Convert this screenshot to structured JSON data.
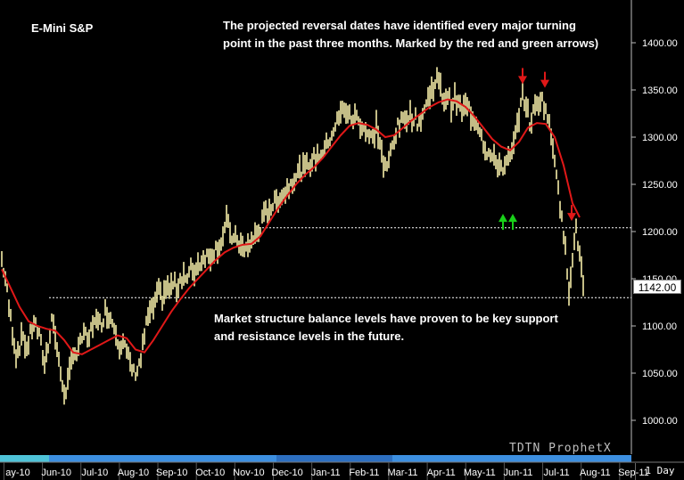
{
  "chart_data": {
    "type": "line",
    "title": "E-Mini S&P",
    "annotations": [
      "The projected reversal dates have identified every major turning point in the past three months. Marked by the red and green arrows)",
      "Market structure balance levels have proven to be key support and resistance levels in the future."
    ],
    "ylim": [
      980,
      1440
    ],
    "y_ticks": [
      1000,
      1050,
      1100,
      1150,
      1200,
      1250,
      1300,
      1350,
      1400
    ],
    "y_tick_labels": [
      "1000.00",
      "1050.00",
      "1100.00",
      "1150.00",
      "1200.00",
      "1250.00",
      "1300.00",
      "1350.00",
      "1400.00"
    ],
    "x_tick_labels": [
      "ay-10",
      "Jun-10",
      "Jul-10",
      "Aug-10",
      "Sep-10",
      "Oct-10",
      "Nov-10",
      "Dec-10",
      "Jan-11",
      "Feb-11",
      "Mar-11",
      "Apr-11",
      "May-11",
      "Jun-11",
      "Jul-11",
      "Aug-11",
      "Sep-11"
    ],
    "last_price_label": "1142.00",
    "timeframe": "1 Day",
    "watermark": "TDTN ProphetX",
    "balance_levels": [
      1204,
      1130
    ],
    "price_path": [
      [
        0,
        1170
      ],
      [
        4,
        1150
      ],
      [
        8,
        1120
      ],
      [
        12,
        1095
      ],
      [
        16,
        1070
      ],
      [
        20,
        1080
      ],
      [
        24,
        1090
      ],
      [
        28,
        1075
      ],
      [
        32,
        1090
      ],
      [
        36,
        1105
      ],
      [
        40,
        1095
      ],
      [
        44,
        1080
      ],
      [
        48,
        1060
      ],
      [
        52,
        1080
      ],
      [
        56,
        1110
      ],
      [
        60,
        1090
      ],
      [
        64,
        1060
      ],
      [
        68,
        1040
      ],
      [
        72,
        1025
      ],
      [
        76,
        1050
      ],
      [
        80,
        1075
      ],
      [
        84,
        1070
      ],
      [
        88,
        1080
      ],
      [
        92,
        1095
      ],
      [
        96,
        1080
      ],
      [
        100,
        1095
      ],
      [
        104,
        1110
      ],
      [
        108,
        1100
      ],
      [
        112,
        1105
      ],
      [
        116,
        1115
      ],
      [
        120,
        1112
      ],
      [
        124,
        1105
      ],
      [
        128,
        1095
      ],
      [
        132,
        1080
      ],
      [
        136,
        1085
      ],
      [
        140,
        1070
      ],
      [
        144,
        1060
      ],
      [
        148,
        1050
      ],
      [
        152,
        1055
      ],
      [
        156,
        1065
      ],
      [
        160,
        1090
      ],
      [
        164,
        1110
      ],
      [
        168,
        1115
      ],
      [
        172,
        1125
      ],
      [
        176,
        1135
      ],
      [
        180,
        1130
      ],
      [
        184,
        1140
      ],
      [
        188,
        1138
      ],
      [
        192,
        1145
      ],
      [
        196,
        1140
      ],
      [
        200,
        1150
      ],
      [
        204,
        1155
      ],
      [
        208,
        1148
      ],
      [
        212,
        1160
      ],
      [
        216,
        1158
      ],
      [
        220,
        1165
      ],
      [
        224,
        1170
      ],
      [
        228,
        1175
      ],
      [
        232,
        1173
      ],
      [
        236,
        1178
      ],
      [
        240,
        1182
      ],
      [
        244,
        1186
      ],
      [
        248,
        1195
      ],
      [
        252,
        1210
      ],
      [
        256,
        1200
      ],
      [
        260,
        1190
      ],
      [
        264,
        1192
      ],
      [
        268,
        1185
      ],
      [
        272,
        1178
      ],
      [
        276,
        1184
      ],
      [
        280,
        1190
      ],
      [
        284,
        1195
      ],
      [
        288,
        1200
      ],
      [
        292,
        1210
      ],
      [
        296,
        1220
      ],
      [
        300,
        1225
      ],
      [
        304,
        1228
      ],
      [
        308,
        1232
      ],
      [
        312,
        1238
      ],
      [
        316,
        1240
      ],
      [
        320,
        1245
      ],
      [
        324,
        1252
      ],
      [
        328,
        1258
      ],
      [
        332,
        1262
      ],
      [
        336,
        1265
      ],
      [
        340,
        1266
      ],
      [
        344,
        1272
      ],
      [
        348,
        1275
      ],
      [
        352,
        1278
      ],
      [
        356,
        1282
      ],
      [
        360,
        1286
      ],
      [
        364,
        1290
      ],
      [
        368,
        1300
      ],
      [
        372,
        1308
      ],
      [
        376,
        1316
      ],
      [
        380,
        1324
      ],
      [
        384,
        1332
      ],
      [
        388,
        1325
      ],
      [
        392,
        1318
      ],
      [
        396,
        1322
      ],
      [
        400,
        1318
      ],
      [
        404,
        1312
      ],
      [
        408,
        1308
      ],
      [
        412,
        1300
      ],
      [
        416,
        1298
      ],
      [
        420,
        1312
      ],
      [
        424,
        1295
      ],
      [
        428,
        1270
      ],
      [
        432,
        1265
      ],
      [
        436,
        1285
      ],
      [
        440,
        1300
      ],
      [
        444,
        1310
      ],
      [
        448,
        1315
      ],
      [
        452,
        1320
      ],
      [
        456,
        1325
      ],
      [
        460,
        1322
      ],
      [
        464,
        1318
      ],
      [
        468,
        1316
      ],
      [
        472,
        1325
      ],
      [
        476,
        1335
      ],
      [
        480,
        1345
      ],
      [
        484,
        1355
      ],
      [
        488,
        1362
      ],
      [
        492,
        1350
      ],
      [
        496,
        1340
      ],
      [
        500,
        1345
      ],
      [
        504,
        1335
      ],
      [
        508,
        1340
      ],
      [
        512,
        1335
      ],
      [
        516,
        1328
      ],
      [
        520,
        1332
      ],
      [
        524,
        1330
      ],
      [
        528,
        1320
      ],
      [
        532,
        1318
      ],
      [
        536,
        1310
      ],
      [
        540,
        1295
      ],
      [
        544,
        1285
      ],
      [
        548,
        1280
      ],
      [
        552,
        1275
      ],
      [
        556,
        1272
      ],
      [
        560,
        1270
      ],
      [
        564,
        1268
      ],
      [
        568,
        1275
      ],
      [
        572,
        1282
      ],
      [
        576,
        1300
      ],
      [
        580,
        1325
      ],
      [
        584,
        1345
      ],
      [
        588,
        1335
      ],
      [
        592,
        1315
      ],
      [
        596,
        1325
      ],
      [
        600,
        1335
      ],
      [
        604,
        1342
      ],
      [
        608,
        1335
      ],
      [
        612,
        1322
      ],
      [
        616,
        1300
      ],
      [
        620,
        1280
      ],
      [
        624,
        1250
      ],
      [
        628,
        1210
      ],
      [
        632,
        1180
      ],
      [
        636,
        1140
      ],
      [
        640,
        1175
      ],
      [
        644,
        1200
      ],
      [
        648,
        1178
      ],
      [
        652,
        1140
      ]
    ],
    "moving_average": [
      [
        0,
        1160
      ],
      [
        10,
        1140
      ],
      [
        20,
        1120
      ],
      [
        30,
        1105
      ],
      [
        40,
        1100
      ],
      [
        50,
        1097
      ],
      [
        60,
        1095
      ],
      [
        70,
        1085
      ],
      [
        80,
        1072
      ],
      [
        90,
        1070
      ],
      [
        100,
        1075
      ],
      [
        110,
        1080
      ],
      [
        120,
        1085
      ],
      [
        130,
        1090
      ],
      [
        140,
        1087
      ],
      [
        150,
        1075
      ],
      [
        160,
        1072
      ],
      [
        170,
        1085
      ],
      [
        180,
        1100
      ],
      [
        190,
        1115
      ],
      [
        200,
        1128
      ],
      [
        210,
        1140
      ],
      [
        220,
        1150
      ],
      [
        230,
        1160
      ],
      [
        240,
        1170
      ],
      [
        250,
        1178
      ],
      [
        260,
        1183
      ],
      [
        270,
        1186
      ],
      [
        280,
        1187
      ],
      [
        290,
        1195
      ],
      [
        300,
        1210
      ],
      [
        310,
        1225
      ],
      [
        320,
        1238
      ],
      [
        330,
        1250
      ],
      [
        340,
        1260
      ],
      [
        350,
        1268
      ],
      [
        360,
        1278
      ],
      [
        370,
        1290
      ],
      [
        380,
        1302
      ],
      [
        390,
        1312
      ],
      [
        400,
        1315
      ],
      [
        410,
        1313
      ],
      [
        420,
        1308
      ],
      [
        430,
        1300
      ],
      [
        440,
        1302
      ],
      [
        450,
        1310
      ],
      [
        460,
        1318
      ],
      [
        470,
        1325
      ],
      [
        480,
        1332
      ],
      [
        490,
        1337
      ],
      [
        500,
        1340
      ],
      [
        510,
        1338
      ],
      [
        520,
        1332
      ],
      [
        530,
        1322
      ],
      [
        540,
        1310
      ],
      [
        550,
        1298
      ],
      [
        560,
        1290
      ],
      [
        570,
        1286
      ],
      [
        580,
        1295
      ],
      [
        590,
        1310
      ],
      [
        600,
        1315
      ],
      [
        610,
        1314
      ],
      [
        620,
        1300
      ],
      [
        630,
        1270
      ],
      [
        640,
        1230
      ],
      [
        648,
        1215
      ]
    ],
    "red_arrows": [
      [
        584,
        1360
      ],
      [
        609,
        1356
      ],
      [
        639,
        1215
      ]
    ],
    "green_arrows": [
      [
        562,
        1240
      ],
      [
        573,
        1240
      ]
    ]
  },
  "colors": {
    "price": "#f5eda8",
    "moving_average": "#e01818",
    "red_arrow": "#e01818",
    "green_arrow": "#19d019",
    "grid": "#ffffff"
  }
}
